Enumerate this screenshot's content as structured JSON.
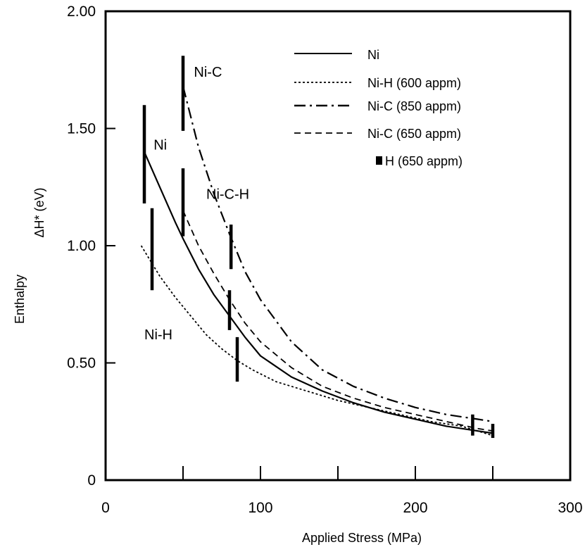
{
  "chart_data": {
    "type": "line",
    "title": "",
    "xlabel": "Applied Stress (MPa)",
    "ylabel_left": "Enthalpy",
    "ylabel_right": "ΔH* (eV)",
    "xlim": [
      0,
      300
    ],
    "ylim": [
      0,
      2.0
    ],
    "x_ticks": [
      0,
      100,
      200,
      300
    ],
    "x_tick_labels": [
      "0",
      "100",
      "200",
      "300"
    ],
    "y_ticks": [
      0,
      0.5,
      1.0,
      1.5,
      2.0
    ],
    "y_tick_labels": [
      "0",
      "0.50",
      "1.00",
      "1.50",
      "2.00"
    ],
    "grid": false,
    "legend_position": "top-right",
    "series": [
      {
        "name": "Ni",
        "style": "solid",
        "x": [
          25,
          35,
          45,
          50,
          60,
          70,
          80,
          90,
          100,
          120,
          140,
          160,
          180,
          200,
          220,
          240,
          250
        ],
        "y": [
          1.4,
          1.25,
          1.1,
          1.03,
          0.9,
          0.79,
          0.7,
          0.61,
          0.53,
          0.44,
          0.38,
          0.33,
          0.29,
          0.26,
          0.23,
          0.21,
          0.2
        ]
      },
      {
        "name": "Ni-H (600 appm)",
        "style": "dotted",
        "x": [
          23,
          35,
          45,
          55,
          65,
          75,
          85,
          95,
          110,
          130,
          150,
          170,
          190,
          210,
          230,
          250
        ],
        "y": [
          1.0,
          0.87,
          0.78,
          0.7,
          0.62,
          0.56,
          0.51,
          0.47,
          0.42,
          0.38,
          0.34,
          0.31,
          0.28,
          0.25,
          0.23,
          0.19
        ]
      },
      {
        "name": "Ni-C (850 appm)",
        "style": "dash-dot",
        "x": [
          50,
          60,
          70,
          80,
          90,
          100,
          120,
          140,
          160,
          180,
          200,
          220,
          240,
          250
        ],
        "y": [
          1.68,
          1.42,
          1.22,
          1.05,
          0.89,
          0.77,
          0.59,
          0.47,
          0.4,
          0.35,
          0.31,
          0.28,
          0.26,
          0.25
        ]
      },
      {
        "name": "Ni-C (650 appm)",
        "style": "dashed",
        "x": [
          50,
          60,
          70,
          80,
          90,
          100,
          120,
          140,
          160,
          180,
          200,
          220,
          240,
          250
        ],
        "y": [
          1.15,
          1.0,
          0.88,
          0.77,
          0.67,
          0.59,
          0.48,
          0.4,
          0.35,
          0.31,
          0.28,
          0.25,
          0.22,
          0.21
        ]
      }
    ],
    "error_bars": {
      "name": "H (650 appm)",
      "bars": [
        {
          "x": 25,
          "low": 1.18,
          "high": 1.6
        },
        {
          "x": 30,
          "low": 0.81,
          "high": 1.16
        },
        {
          "x": 50,
          "low": 1.49,
          "high": 1.81
        },
        {
          "x": 50,
          "low": 1.04,
          "high": 1.33
        },
        {
          "x": 80,
          "low": 0.64,
          "high": 0.81
        },
        {
          "x": 81,
          "low": 0.9,
          "high": 1.09
        },
        {
          "x": 85,
          "low": 0.42,
          "high": 0.61
        },
        {
          "x": 237,
          "low": 0.19,
          "high": 0.28
        },
        {
          "x": 250,
          "low": 0.18,
          "high": 0.24
        }
      ]
    },
    "annotations": [
      {
        "text": "Ni-C",
        "x": 57,
        "y": 1.72
      },
      {
        "text": "Ni",
        "x": 31,
        "y": 1.41
      },
      {
        "text": "Ni-C-H",
        "x": 65,
        "y": 1.2
      },
      {
        "text": "Ni-H",
        "x": 25,
        "y": 0.6
      }
    ]
  }
}
